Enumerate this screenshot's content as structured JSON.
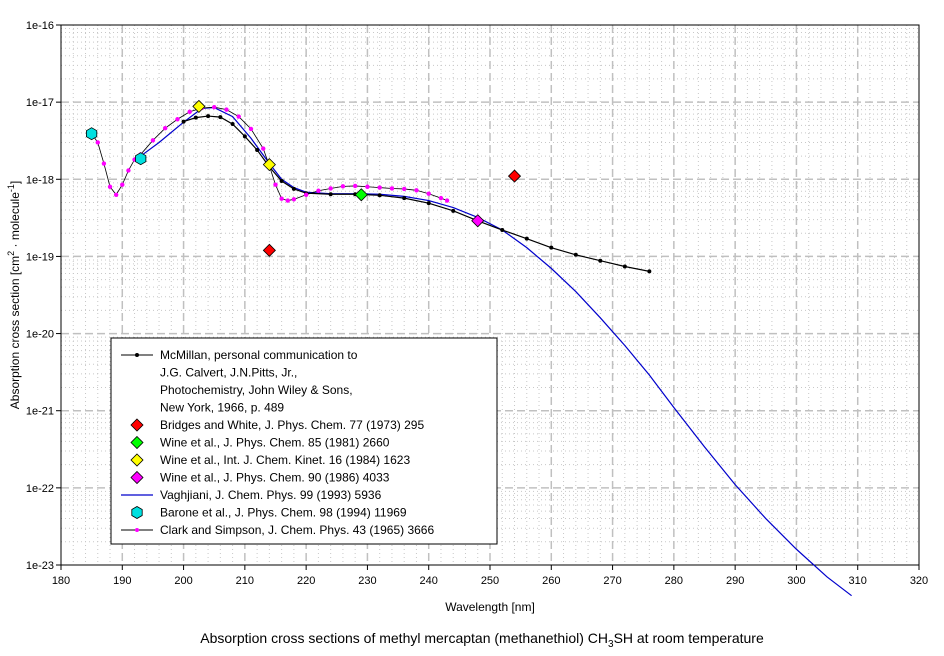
{
  "chart_data": {
    "type": "line",
    "title": "Absorption cross sections of methyl mercaptan (methanethiol) CH3SH at room temperature",
    "title_parts": {
      "before": "Absorption cross sections of methyl mercaptan (methanethiol) CH",
      "sub": "3",
      "after": "SH at room temperature"
    },
    "xlabel": "Wavelength [nm]",
    "ylabel": "Absorption cross section [cm2 · molecule-1]",
    "ylabel_parts": {
      "a": "Absorption cross section [cm",
      "sup1": "2",
      "b": " · molecule",
      "sup2": "-1",
      "c": "]"
    },
    "xlim": [
      180,
      320
    ],
    "ylim": [
      1e-23,
      1e-16
    ],
    "yscale": "log",
    "grid": true,
    "legend_position": "lower-left",
    "x_ticks": [
      "180",
      "190",
      "200",
      "210",
      "220",
      "230",
      "240",
      "250",
      "260",
      "270",
      "280",
      "290",
      "300",
      "310",
      "320"
    ],
    "y_ticks": [
      "1e-23",
      "1e-22",
      "1e-21",
      "1e-20",
      "1e-19",
      "1e-18",
      "1e-17",
      "1e-16"
    ],
    "series": [
      {
        "name": "McMillan, personal communication to J.G. Calvert, J.N.Pitts, Jr., Photochemistry, John Wiley & Sons, New York, 1966, p. 489",
        "legend_lines": [
          "McMillan, personal communication to",
          "J.G. Calvert, J.N.Pitts, Jr.,",
          "Photochemistry, John Wiley & Sons,",
          "New York, 1966, p. 489"
        ],
        "style": "line-dot",
        "color": "#000000",
        "x": [
          200,
          202,
          204,
          206,
          208,
          210,
          212,
          214,
          216,
          218,
          220,
          224,
          228,
          232,
          236,
          240,
          244,
          248,
          252,
          256,
          260,
          264,
          268,
          272,
          276
        ],
        "y": [
          5.6e-18,
          6.3e-18,
          6.6e-18,
          6.4e-18,
          5.2e-18,
          3.6e-18,
          2.4e-18,
          1.45e-18,
          9.5e-19,
          7.5e-19,
          6.6e-19,
          6.4e-19,
          6.4e-19,
          6.2e-19,
          5.7e-19,
          4.9e-19,
          3.9e-19,
          2.9e-19,
          2.2e-19,
          1.7e-19,
          1.3e-19,
          1.05e-19,
          8.8e-20,
          7.4e-20,
          6.4e-20
        ]
      },
      {
        "name": "Bridges and White, J. Phys. Chem. 77 (1973) 295",
        "legend_lines": [
          "Bridges and White, J. Phys. Chem. 77 (1973) 295"
        ],
        "style": "diamond",
        "color": "#ff0000",
        "x": [
          214,
          254
        ],
        "y": [
          1.2e-19,
          1.1e-18
        ]
      },
      {
        "name": "Wine et al., J. Phys. Chem. 85 (1981) 2660",
        "legend_lines": [
          "Wine et al., J. Phys. Chem. 85 (1981) 2660"
        ],
        "style": "diamond",
        "color": "#00ff00",
        "x": [
          229
        ],
        "y": [
          6.3e-19
        ]
      },
      {
        "name": "Wine et al., Int. J. Chem. Kinet. 16 (1984) 1623",
        "legend_lines": [
          "Wine et al., Int. J. Chem. Kinet. 16 (1984) 1623"
        ],
        "style": "diamond",
        "color": "#ffff00",
        "x": [
          202.5,
          214
        ],
        "y": [
          8.8e-18,
          1.55e-18
        ]
      },
      {
        "name": "Wine et al., J. Phys. Chem. 90 (1986) 4033",
        "legend_lines": [
          "Wine et al., J. Phys. Chem. 90 (1986) 4033"
        ],
        "style": "diamond",
        "color": "#ff00ff",
        "x": [
          248
        ],
        "y": [
          2.9e-19
        ]
      },
      {
        "name": "Vaghjiani, J. Chem. Phys. 99 (1993) 5936",
        "legend_lines": [
          "Vaghjiani,  J. Chem. Phys. 99 (1993) 5936"
        ],
        "style": "line",
        "color": "#0000cc",
        "x": [
          193,
          196,
          200,
          203,
          205,
          208,
          211,
          214,
          216,
          218,
          220,
          224,
          228,
          232,
          236,
          240,
          244,
          248,
          252,
          256,
          260,
          264,
          268,
          272,
          276,
          280,
          285,
          290,
          295,
          300,
          305,
          309
        ],
        "y": [
          2e-18,
          3e-18,
          5.5e-18,
          8.3e-18,
          8.5e-18,
          6.5e-18,
          3.4e-18,
          1.6e-18,
          1e-18,
          7.8e-19,
          6.8e-19,
          6.5e-19,
          6.5e-19,
          6.4e-19,
          6e-19,
          5.3e-19,
          4.3e-19,
          3.2e-19,
          2.2e-19,
          1.3e-19,
          7e-20,
          3.5e-20,
          1.6e-20,
          7e-21,
          2.9e-21,
          1.1e-21,
          3.4e-22,
          1.1e-22,
          4e-23,
          1.6e-23,
          7e-24,
          4e-24
        ]
      },
      {
        "name": "Barone et al., J. Phys. Chem. 98 (1994) 11969",
        "legend_lines": [
          "Barone et al., J. Phys. Chem. 98 (1994) 11969"
        ],
        "style": "hexagon",
        "color": "#00e0e0",
        "x": [
          185,
          193
        ],
        "y": [
          3.9e-18,
          1.85e-18
        ]
      },
      {
        "name": "Clark and Simpson, J. Chem. Phys. 43 (1965) 3666",
        "legend_lines": [
          "Clark and Simpson, J. Chem. Phys. 43 (1965) 3666"
        ],
        "style": "line-dot-magenta",
        "color": "#ff00ff",
        "x": [
          185,
          186,
          187,
          188,
          189,
          190,
          191,
          192,
          193,
          195,
          197,
          199,
          201,
          203,
          205,
          207,
          209,
          211,
          213,
          214,
          215,
          216,
          217,
          218,
          220,
          222,
          224,
          226,
          228,
          230,
          232,
          234,
          236,
          238,
          240,
          242,
          243
        ],
        "y": [
          3.9e-18,
          3e-18,
          1.6e-18,
          8e-19,
          6.3e-19,
          8.5e-19,
          1.3e-18,
          1.8e-18,
          2.1e-18,
          3.2e-18,
          4.6e-18,
          6e-18,
          7.5e-18,
          8.4e-18,
          8.6e-18,
          8e-18,
          6.5e-18,
          4.5e-18,
          2.5e-18,
          1.5e-18,
          8.5e-19,
          5.6e-19,
          5.3e-19,
          5.5e-19,
          6.3e-19,
          7.1e-19,
          7.6e-19,
          8.1e-19,
          8.2e-19,
          8e-19,
          7.8e-19,
          7.6e-19,
          7.5e-19,
          7.2e-19,
          6.5e-19,
          5.7e-19,
          5.3e-19
        ]
      }
    ]
  }
}
